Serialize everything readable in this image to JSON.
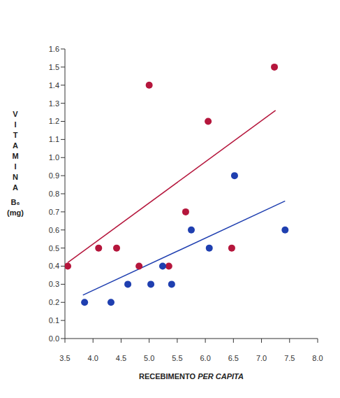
{
  "chart_data": {
    "type": "scatter",
    "x_label": "RECEBIMENTO PER CAPITA",
    "y_label": "VITAMINA B₆ (mg)",
    "xlim": [
      3.5,
      8.0
    ],
    "xticks": [
      3.5,
      {
        "value": 4,
        "label": "4.0"
      },
      4.5,
      {
        "value": 5,
        "label": "5.0"
      },
      5.5,
      {
        "value": 6,
        "label": "6.0"
      },
      6.5,
      {
        "value": 7,
        "label": "7.0"
      },
      7.5,
      {
        "value": 8,
        "label": "8.0"
      }
    ],
    "ylim": [
      0,
      1.6
    ],
    "yticks": [
      {
        "value": 0,
        "label": "0.0"
      },
      0.1,
      0.2,
      0.3,
      0.4,
      0.5,
      0.6,
      0.7,
      0.8,
      0.9,
      {
        "value": 1,
        "label": "1.0"
      },
      1.1,
      1.2,
      1.3,
      1.4,
      1.5,
      1.6
    ],
    "grid": false,
    "series": [
      {
        "color": "#b5163c",
        "marker": "circle",
        "x": [
          3.55,
          4.1,
          4.42,
          4.82,
          5.0,
          5.35,
          5.65,
          6.05,
          6.47,
          7.23
        ],
        "values": [
          0.4,
          0.5,
          0.5,
          0.4,
          1.4,
          0.4,
          0.7,
          1.2,
          0.5,
          1.5
        ],
        "trend": {
          "x": [
            3.55,
            7.25
          ],
          "values": [
            0.42,
            1.26
          ]
        }
      },
      {
        "color": "#1f3fb0",
        "marker": "circle",
        "x": [
          3.85,
          4.32,
          4.62,
          5.03,
          5.24,
          5.4,
          5.75,
          6.07,
          6.52,
          7.42
        ],
        "values": [
          0.2,
          0.2,
          0.3,
          0.3,
          0.4,
          0.3,
          0.6,
          0.5,
          0.9,
          0.6
        ],
        "trend": {
          "x": [
            3.82,
            7.42
          ],
          "values": [
            0.24,
            0.76
          ]
        }
      }
    ]
  }
}
